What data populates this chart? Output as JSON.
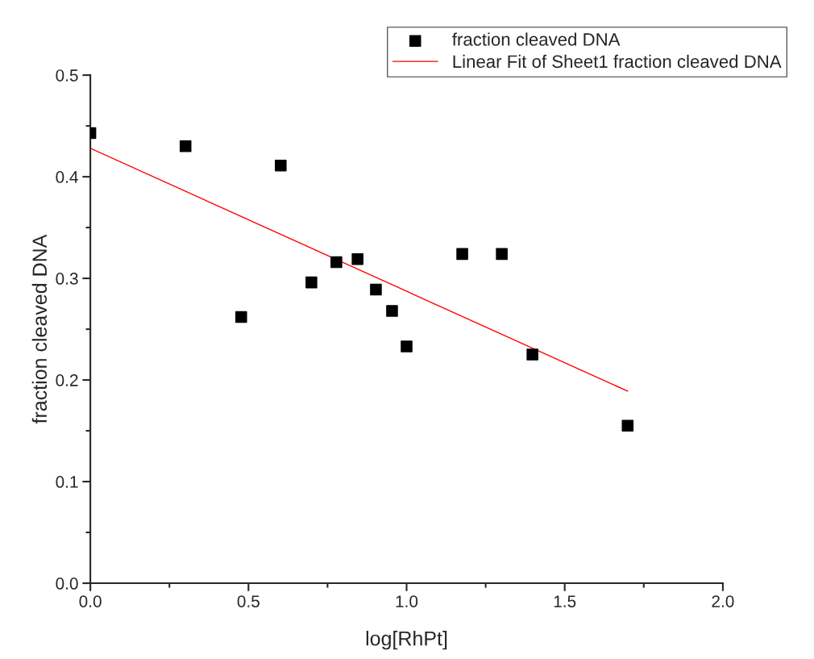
{
  "chart_data": {
    "type": "scatter",
    "xlabel": "log[RhPt]",
    "ylabel": "fraction cleaved DNA",
    "x": [
      0,
      0.301,
      0.477,
      0.602,
      0.699,
      0.778,
      0.845,
      0.903,
      0.954,
      1.0,
      1.176,
      1.301,
      1.398,
      1.699
    ],
    "series": [
      {
        "name": "fraction cleaved DNA",
        "color": "#000000",
        "marker": "square",
        "values": [
          0.443,
          0.43,
          0.262,
          0.411,
          0.296,
          0.316,
          0.319,
          0.289,
          0.268,
          0.233,
          0.324,
          0.324,
          0.225,
          0.155
        ]
      },
      {
        "name": "Linear Fit of Sheet1 fraction cleaved DNA",
        "type": "line",
        "color": "#ff0000",
        "marker": "none",
        "line_style": "solid",
        "x": [
          0,
          1.699
        ],
        "values": [
          0.428,
          0.189
        ]
      }
    ],
    "xlim": [
      0,
      2
    ],
    "ylim": [
      0,
      0.5
    ],
    "xticks": [
      {
        "value": 0,
        "label": "0.0"
      },
      0.5,
      {
        "value": 1,
        "label": "1.0"
      },
      1.5,
      {
        "value": 2,
        "label": "2.0"
      }
    ],
    "yticks": [
      {
        "value": 0,
        "label": "0.0"
      },
      0.1,
      0.2,
      0.3,
      0.4,
      0.5
    ],
    "grid": false,
    "legend": "top right"
  }
}
